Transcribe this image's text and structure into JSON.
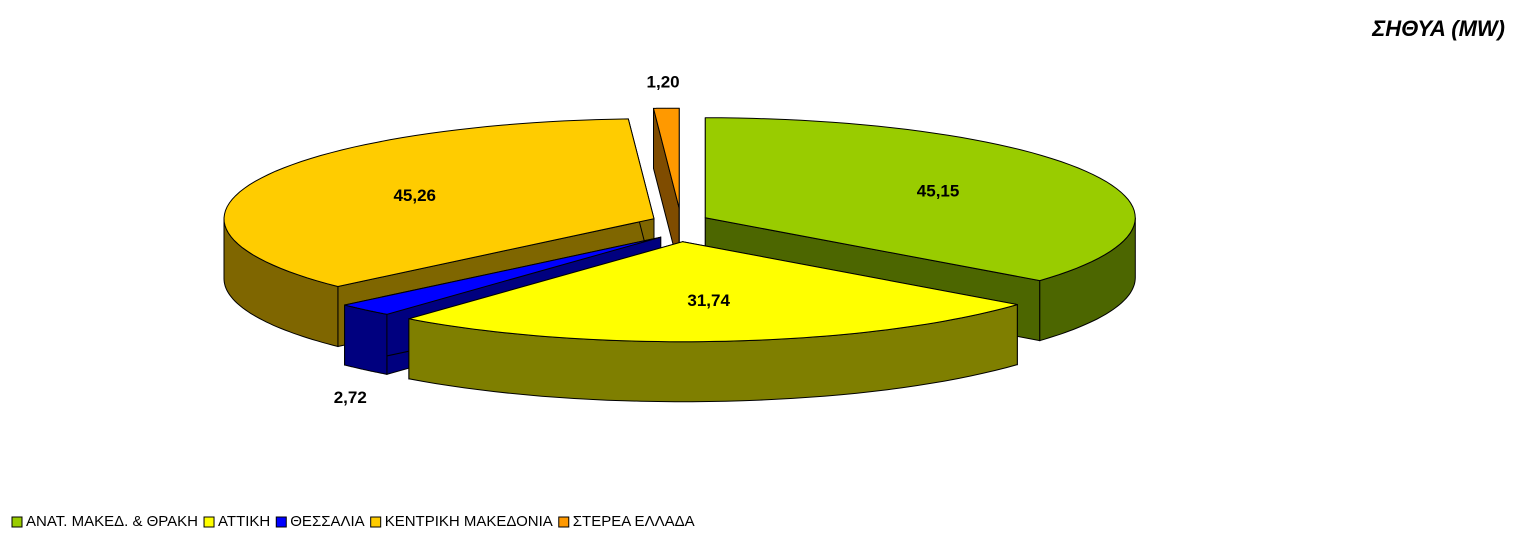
{
  "chart_data": {
    "type": "pie3d",
    "title": "ΣΗΘΥΑ (MW)",
    "categories": [
      "ΑΝΑΤ. ΜΑΚΕΔ. & ΘΡΑΚΗ",
      "ΑΤΤΙΚΗ",
      "ΘΕΣΣΑΛΙΑ",
      "ΚΕΝΤΡΙΚΗ ΜΑΚΕΔΟΝΙΑ",
      "ΣΤΕΡΕΑ ΕΛΛΑΔΑ"
    ],
    "values": [
      45.15,
      31.74,
      2.72,
      45.26,
      1.2
    ],
    "value_labels": [
      "45,15",
      "31,74",
      "2,72",
      "45,26",
      "1,20"
    ],
    "colors": [
      "#99cc00",
      "#ffff00",
      "#0000ff",
      "#ffcc00",
      "#ff9900"
    ],
    "legend": "bottom-left"
  }
}
